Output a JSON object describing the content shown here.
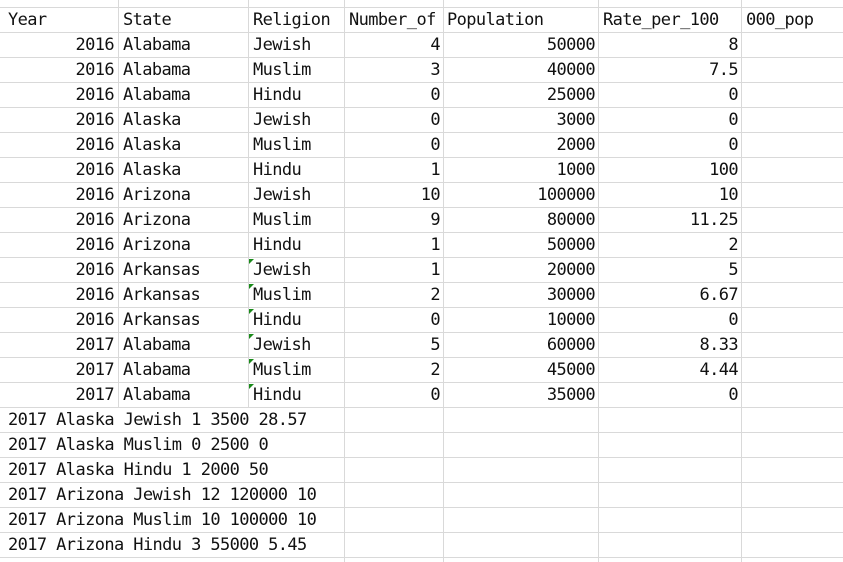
{
  "headers": [
    "Year",
    "State",
    "Religion",
    "Number_of",
    "Population",
    "Rate_per_100",
    "000_pop"
  ],
  "rows": [
    [
      "2016",
      "Alabama",
      "Jewish",
      "4",
      "50000",
      "8"
    ],
    [
      "2016",
      "Alabama",
      "Muslim",
      "3",
      "40000",
      "7.5"
    ],
    [
      "2016",
      "Alabama",
      "Hindu",
      "0",
      "25000",
      "0"
    ],
    [
      "2016",
      "Alaska",
      "Jewish",
      "0",
      "3000",
      "0"
    ],
    [
      "2016",
      "Alaska",
      "Muslim",
      "0",
      "2000",
      "0"
    ],
    [
      "2016",
      "Alaska",
      "Hindu",
      "1",
      "1000",
      "100"
    ],
    [
      "2016",
      "Arizona",
      "Jewish",
      "10",
      "100000",
      "10"
    ],
    [
      "2016",
      "Arizona",
      "Muslim",
      "9",
      "80000",
      "11.25"
    ],
    [
      "2016",
      "Arizona",
      "Hindu",
      "1",
      "50000",
      "2"
    ],
    [
      "2016",
      "Arkansas",
      "Jewish",
      "1",
      "20000",
      "5"
    ],
    [
      "2016",
      "Arkansas",
      "Muslim",
      "2",
      "30000",
      "6.67"
    ],
    [
      "2016",
      "Arkansas",
      "Hindu",
      "0",
      "10000",
      "0"
    ],
    [
      "2017",
      "Alabama",
      "Jewish",
      "5",
      "60000",
      "8.33"
    ],
    [
      "2017",
      "Alabama",
      "Muslim",
      "2",
      "45000",
      "4.44"
    ],
    [
      "2017",
      "Alabama",
      "Hindu",
      "0",
      "35000",
      "0"
    ]
  ],
  "text_rows": [
    "2017 Alaska Jewish 1 3500 28.57",
    "2017 Alaska Muslim 0 2500 0",
    "2017 Alaska Hindu 1 2000 50",
    "2017 Arizona Jewish 12 120000 10",
    "2017 Arizona Muslim 10 100000 10",
    "2017 Arizona Hindu 3 55000 5.45"
  ],
  "colors": {
    "grid": "#d9d9d9",
    "error_marker": "#1a8a1a",
    "text": "#111111"
  }
}
